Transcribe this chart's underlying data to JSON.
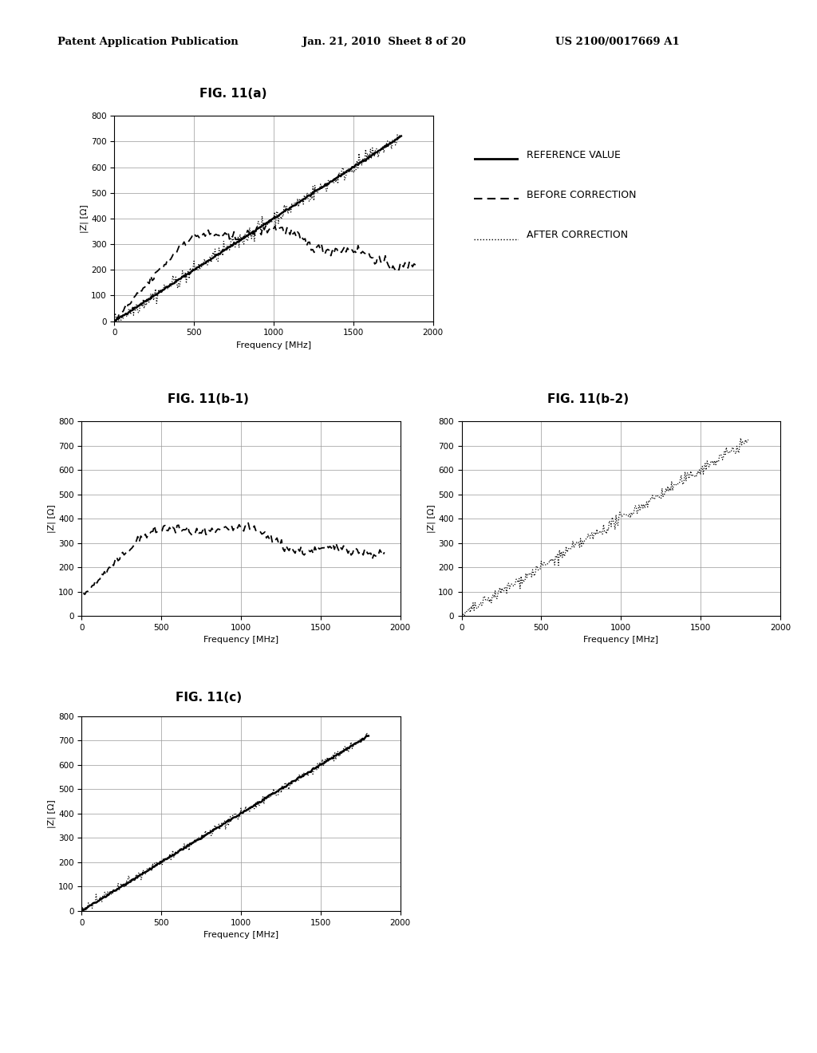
{
  "header_left": "Patent Application Publication",
  "header_mid": "Jan. 21, 2010  Sheet 8 of 20",
  "header_right": "US 2100/0017669 A1",
  "fig_labels": [
    "FIG. 11(a)",
    "FIG. 11(b-1)",
    "FIG. 11(b-2)",
    "FIG. 11(c)"
  ],
  "ylabel": "|Z| [Ω]",
  "xlabel": "Frequency [MHz]",
  "xlim": [
    0,
    2000
  ],
  "ylim": [
    0,
    800
  ],
  "yticks": [
    0,
    100,
    200,
    300,
    400,
    500,
    600,
    700,
    800
  ],
  "xticks": [
    0,
    500,
    1000,
    1500,
    2000
  ],
  "legend_labels": [
    "REFERENCE VALUE",
    "BEFORE CORRECTION",
    "AFTER CORRECTION"
  ],
  "background_color": "#ffffff",
  "line_color": "#000000"
}
